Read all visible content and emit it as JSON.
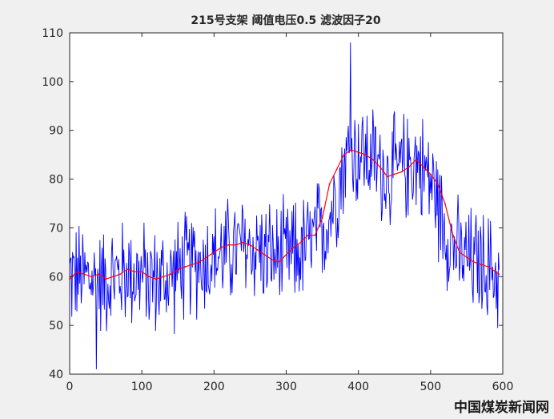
{
  "chart_data": {
    "type": "line",
    "title": "215号支架 阈值电压0.5  滤波因子20",
    "xlabel": "",
    "ylabel": "",
    "xlim": [
      0,
      600
    ],
    "ylim": [
      40,
      110
    ],
    "xticks": [
      "0",
      "100",
      "200",
      "300",
      "400",
      "500",
      "600"
    ],
    "yticks": [
      "40",
      "50",
      "60",
      "70",
      "80",
      "90",
      "100",
      "110"
    ],
    "grid": false,
    "series": [
      {
        "color": "#0000ff",
        "style": "raw",
        "anchors_x": [
          0,
          20,
          40,
          60,
          80,
          100,
          120,
          140,
          160,
          180,
          200,
          220,
          240,
          260,
          280,
          300,
          320,
          340,
          360,
          370,
          380,
          390,
          400,
          410,
          420,
          440,
          460,
          480,
          500,
          520,
          540,
          560,
          580,
          595
        ],
        "anchors_y": [
          60,
          60,
          59,
          60,
          61,
          60,
          59,
          60,
          62,
          63,
          64,
          65,
          66,
          66,
          64,
          64,
          65,
          68,
          72,
          78,
          83,
          86,
          85,
          85,
          84,
          81,
          82,
          84,
          80,
          70,
          64,
          63,
          62,
          60
        ],
        "noise_amplitude": 9,
        "y_extremes": {
          "max": 108,
          "min": 41
        }
      },
      {
        "color": "#ff0000",
        "style": "filtered",
        "x": [
          0,
          10,
          20,
          30,
          40,
          50,
          60,
          70,
          80,
          90,
          100,
          110,
          120,
          130,
          140,
          150,
          160,
          170,
          180,
          190,
          200,
          210,
          220,
          230,
          240,
          250,
          260,
          270,
          280,
          290,
          300,
          310,
          320,
          330,
          340,
          350,
          360,
          370,
          380,
          390,
          400,
          410,
          420,
          430,
          440,
          450,
          460,
          470,
          480,
          490,
          500,
          510,
          520,
          530,
          540,
          550,
          560,
          570,
          580,
          590,
          595
        ],
        "values": [
          59.5,
          61,
          60.5,
          60,
          60.5,
          59.5,
          60,
          60.5,
          61.5,
          61,
          61,
          60,
          59.5,
          60,
          60.5,
          61.5,
          62,
          62.5,
          63,
          64,
          65,
          66,
          66.5,
          66.5,
          67,
          66.5,
          65.5,
          64.5,
          63.5,
          63,
          64.5,
          66,
          67,
          68.5,
          68.5,
          72,
          79,
          82,
          85,
          86,
          85.5,
          85,
          84,
          82.5,
          80.5,
          81,
          81.5,
          82.5,
          84,
          82.5,
          81,
          79,
          75,
          69,
          65,
          64,
          63,
          62.5,
          62,
          61,
          60.5
        ]
      }
    ]
  },
  "watermark": "中国煤炭新闻网"
}
